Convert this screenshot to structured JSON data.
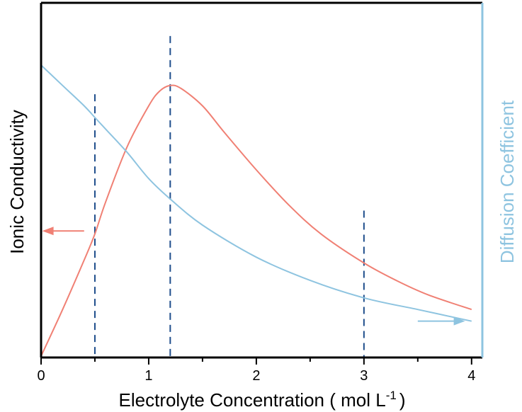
{
  "chart_data": {
    "type": "line",
    "xlabel": "Electrolyte Concentration ( mol L",
    "xlabel_superscript": "-1",
    "xlabel_close": ")",
    "ylabel_left": "Ionic Conductivity",
    "ylabel_right": "Diffusion Coefficient",
    "xlim": [
      0,
      4.1
    ],
    "x_ticks": [
      "0",
      "1",
      "2",
      "3",
      "4"
    ],
    "y_ticks_shown": false,
    "series": [
      {
        "axis": "left",
        "color": "#f08074",
        "x": [
          0,
          0.2,
          0.4,
          0.5,
          0.6,
          0.8,
          1.0,
          1.1,
          1.2,
          1.3,
          1.5,
          1.7,
          2.0,
          2.3,
          2.6,
          3.0,
          3.3,
          3.6,
          4.0
        ],
        "y": [
          0,
          0.16,
          0.33,
          0.42,
          0.53,
          0.72,
          0.86,
          0.91,
          0.93,
          0.92,
          0.86,
          0.77,
          0.64,
          0.52,
          0.42,
          0.32,
          0.26,
          0.21,
          0.16
        ]
      },
      {
        "axis": "right",
        "color": "#8ec4e0",
        "x": [
          0,
          0.2,
          0.4,
          0.5,
          0.6,
          0.8,
          1.0,
          1.2,
          1.5,
          2.0,
          2.5,
          3.0,
          3.5,
          4.0
        ],
        "y": [
          1.0,
          0.93,
          0.86,
          0.82,
          0.78,
          0.7,
          0.61,
          0.54,
          0.45,
          0.34,
          0.26,
          0.2,
          0.16,
          0.12
        ]
      }
    ],
    "reference_lines": [
      {
        "x": 0.5,
        "top": 0.9
      },
      {
        "x": 1.2,
        "top": 1.1
      },
      {
        "x": 3.0,
        "top": 0.5
      }
    ],
    "reference_line_color": "#1f4e8c",
    "arrows": [
      {
        "series": "left",
        "direction": "left",
        "x_from": 0.4,
        "x_to": 0.05,
        "y": 0.43
      },
      {
        "series": "right",
        "direction": "right",
        "x_from": 3.5,
        "x_to": 3.9,
        "y": 0.12
      }
    ],
    "left_axis_color": "#000000",
    "right_axis_color": "#8ec4e0"
  }
}
